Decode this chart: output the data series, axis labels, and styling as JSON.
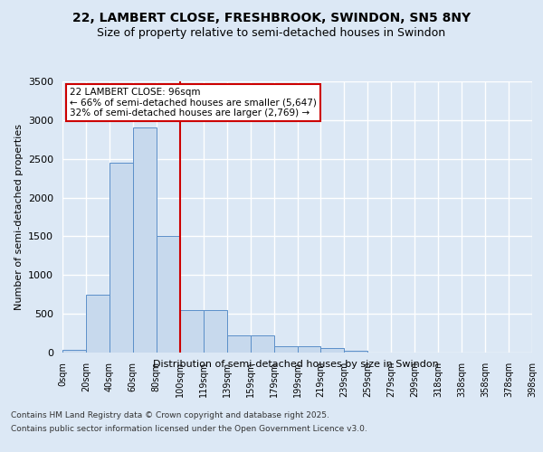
{
  "title_line1": "22, LAMBERT CLOSE, FRESHBROOK, SWINDON, SN5 8NY",
  "title_line2": "Size of property relative to semi-detached houses in Swindon",
  "xlabel": "Distribution of semi-detached houses by size in Swindon",
  "ylabel": "Number of semi-detached properties",
  "bin_labels": [
    "0sqm",
    "20sqm",
    "40sqm",
    "60sqm",
    "80sqm",
    "100sqm",
    "119sqm",
    "139sqm",
    "159sqm",
    "179sqm",
    "199sqm",
    "219sqm",
    "239sqm",
    "259sqm",
    "279sqm",
    "299sqm",
    "318sqm",
    "338sqm",
    "358sqm",
    "378sqm",
    "398sqm"
  ],
  "bar_values": [
    30,
    750,
    2450,
    2900,
    1500,
    550,
    550,
    220,
    220,
    80,
    80,
    55,
    20,
    0,
    0,
    0,
    0,
    0,
    0,
    0
  ],
  "bar_color": "#c7d9ed",
  "bar_edge_color": "#5b8fc9",
  "property_line_x": 5.0,
  "annotation_title": "22 LAMBERT CLOSE: 96sqm",
  "annotation_line2": "← 66% of semi-detached houses are smaller (5,647)",
  "annotation_line3": "32% of semi-detached houses are larger (2,769) →",
  "vline_color": "#cc0000",
  "ylim": [
    0,
    3500
  ],
  "yticks": [
    0,
    500,
    1000,
    1500,
    2000,
    2500,
    3000,
    3500
  ],
  "footer_line1": "Contains HM Land Registry data © Crown copyright and database right 2025.",
  "footer_line2": "Contains public sector information licensed under the Open Government Licence v3.0.",
  "background_color": "#dce8f5",
  "plot_bg_color": "#dce8f5",
  "grid_color": "#ffffff",
  "annotation_box_color": "#ffffff",
  "annotation_box_edge": "#cc0000"
}
